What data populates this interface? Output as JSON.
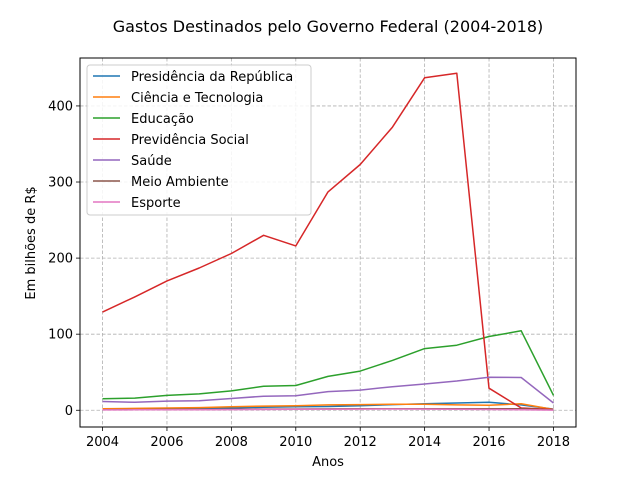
{
  "chart_data": {
    "type": "line",
    "title": "Gastos Destinados pelo Governo Federal (2004-2018)",
    "xlabel": "Anos",
    "ylabel": "Em bilhões de R$",
    "xlim": [
      2003.3,
      2018.7
    ],
    "ylim": [
      -22,
      463
    ],
    "xticks": [
      2004,
      2006,
      2008,
      2010,
      2012,
      2014,
      2016,
      2018
    ],
    "yticks": [
      0,
      100,
      200,
      300,
      400
    ],
    "grid": true,
    "legend_position": "top-left",
    "x": [
      2004,
      2005,
      2006,
      2007,
      2008,
      2009,
      2010,
      2011,
      2012,
      2013,
      2014,
      2015,
      2016,
      2017,
      2018
    ],
    "series": [
      {
        "name": "Presidência da República",
        "color": "#1f77b4",
        "values": [
          1.5,
          1.8,
          2.0,
          2.5,
          3.0,
          4.0,
          4.5,
          5.0,
          6.0,
          7.5,
          8.5,
          9.5,
          10.5,
          7.0,
          1.5
        ]
      },
      {
        "name": "Ciência e Tecnologia",
        "color": "#ff7f0e",
        "values": [
          2.0,
          2.5,
          3.0,
          3.5,
          4.5,
          5.5,
          6.0,
          7.0,
          7.5,
          8.0,
          8.0,
          7.0,
          6.5,
          8.5,
          1.0
        ]
      },
      {
        "name": "Educação",
        "color": "#2ca02c",
        "values": [
          15,
          16,
          19.5,
          21.5,
          25.5,
          31.5,
          32.5,
          44.5,
          51.5,
          65.5,
          81,
          85.5,
          97,
          104.5,
          19.5
        ]
      },
      {
        "name": "Previdência Social",
        "color": "#d62728",
        "values": [
          129,
          149,
          170,
          187,
          206,
          230,
          216,
          287,
          323,
          372,
          437,
          443,
          29,
          3,
          1
        ]
      },
      {
        "name": "Saúde",
        "color": "#9467bd",
        "values": [
          11.5,
          10.5,
          12,
          12.5,
          15.5,
          18.5,
          19,
          24.5,
          26.5,
          31,
          34.5,
          38.5,
          43.5,
          43,
          9.5
        ]
      },
      {
        "name": "Meio Ambiente",
        "color": "#8c564b",
        "values": [
          0.8,
          0.9,
          1.0,
          1.0,
          1.2,
          1.5,
          1.6,
          1.8,
          1.9,
          2.0,
          2.0,
          2.0,
          2.0,
          2.0,
          0.5
        ]
      },
      {
        "name": "Esporte",
        "color": "#e377c2",
        "values": [
          0.5,
          0.6,
          0.7,
          0.8,
          0.9,
          1.0,
          1.2,
          1.3,
          1.5,
          1.6,
          1.5,
          1.2,
          1.0,
          0.8,
          0.2
        ]
      }
    ]
  }
}
